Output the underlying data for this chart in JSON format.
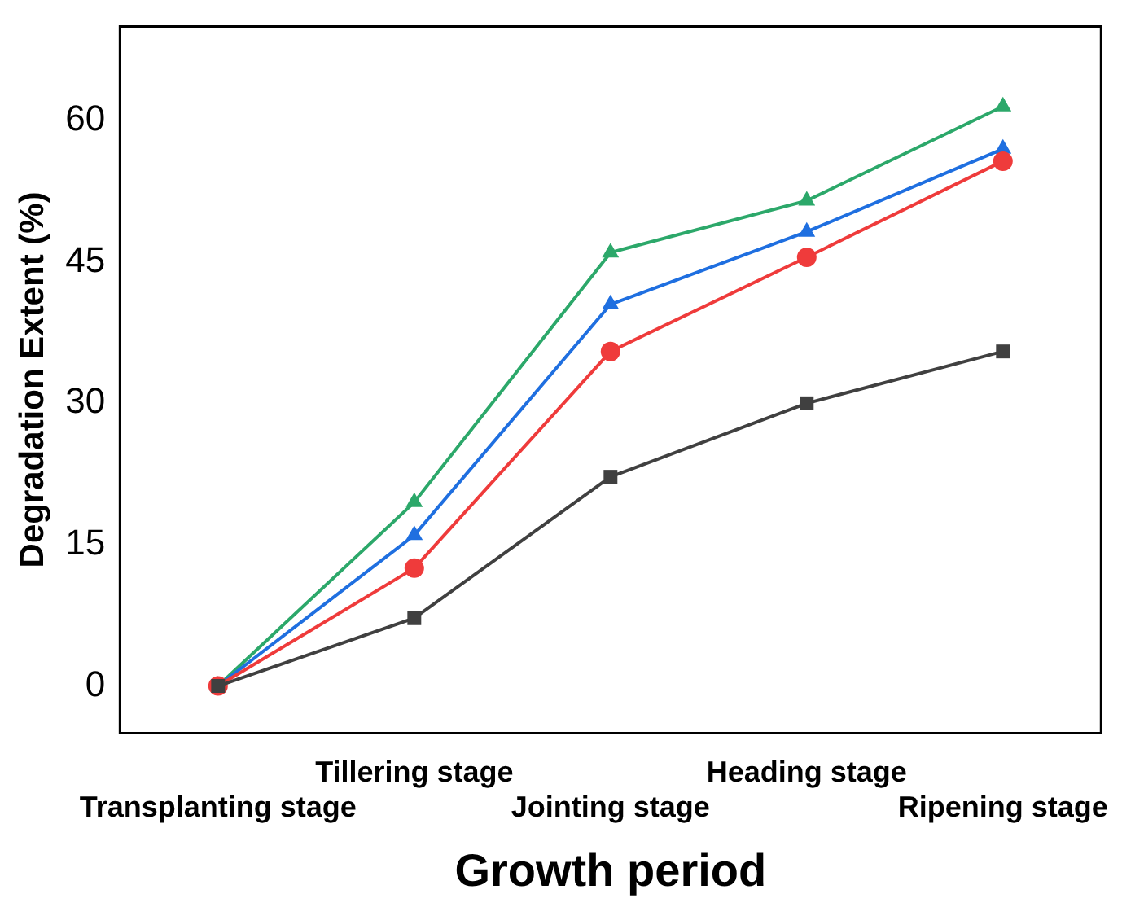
{
  "chart_data": {
    "type": "line",
    "xlabel": "Growth period",
    "ylabel": "Degradation Extent (%)",
    "categories": [
      "Transplanting stage",
      "Tillering stage",
      "Jointing stage",
      "Heading stage",
      "Ripening stage"
    ],
    "series": [
      {
        "color": "#404040",
        "marker": "square",
        "values": [
          0,
          7.2,
          22.2,
          30,
          35.5
        ]
      },
      {
        "color": "#ef3b3b",
        "marker": "circle",
        "values": [
          0,
          12.5,
          35.5,
          45.5,
          55.7
        ]
      },
      {
        "color": "#1f6fe0",
        "marker": "triangle",
        "values": [
          0,
          16,
          40.5,
          48.2,
          57
        ]
      },
      {
        "color": "#2ca86a",
        "marker": "triangle",
        "values": [
          0,
          19.5,
          46,
          51.5,
          61.5
        ]
      }
    ],
    "ylim": [
      -5,
      70
    ],
    "yticks": [
      0,
      15,
      30,
      45,
      60
    ],
    "grid": false,
    "legend": false
  }
}
